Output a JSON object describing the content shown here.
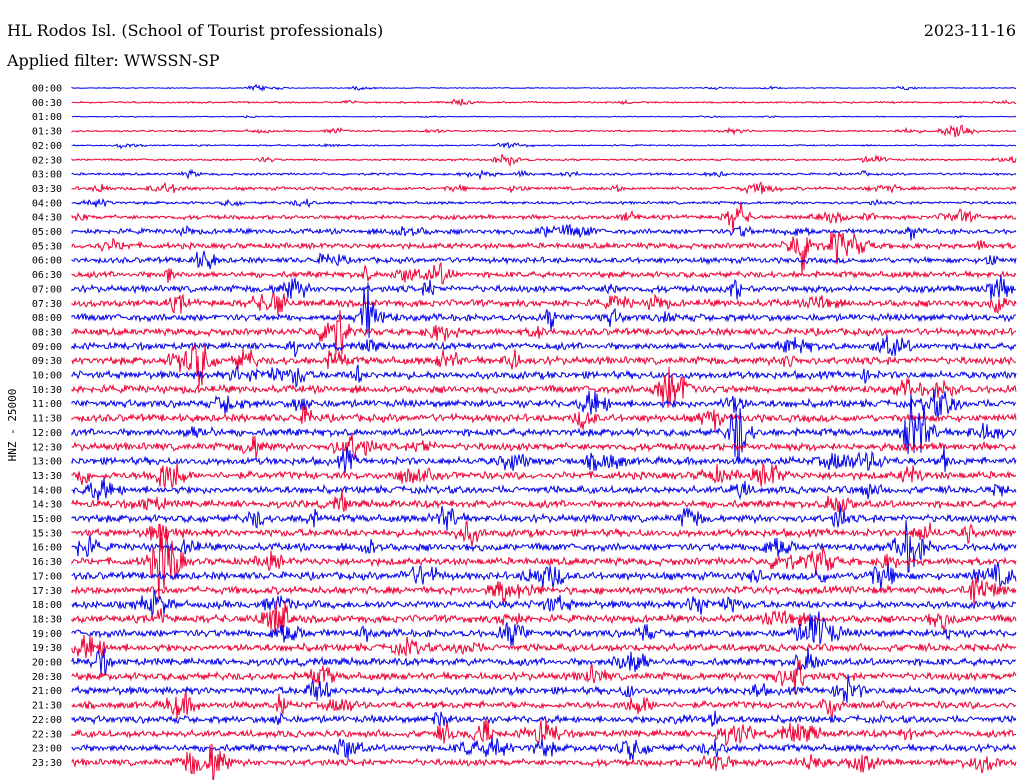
{
  "header": {
    "station": "HL Rodos Isl. (School of Tourist professionals)",
    "date": "2023-11-16",
    "filter": "Applied filter: WWSSN-SP"
  },
  "chart_data": {
    "type": "line",
    "title": "HL Rodos Isl. (School of Tourist professionals)",
    "subtitle": "Applied filter: WWSSN-SP",
    "ylabel": "HNZ - 25000",
    "xlabel": "",
    "grid": false,
    "row_labels": [
      "00:00",
      "00:30",
      "01:00",
      "01:30",
      "02:00",
      "02:30",
      "03:00",
      "03:30",
      "04:00",
      "04:30",
      "05:00",
      "05:30",
      "06:00",
      "06:30",
      "07:00",
      "07:30",
      "08:00",
      "08:30",
      "09:00",
      "09:30",
      "10:00",
      "10:30",
      "11:00",
      "11:30",
      "12:00",
      "12:30",
      "13:00",
      "13:30",
      "14:00",
      "14:30",
      "15:00",
      "15:30",
      "16:00",
      "16:30",
      "17:00",
      "17:30",
      "18:00",
      "18:30",
      "19:00",
      "19:30",
      "20:00",
      "20:30",
      "21:00",
      "21:30",
      "22:00",
      "22:30",
      "23:00",
      "23:30"
    ],
    "colors": [
      "#0000ee",
      "#ee0033"
    ],
    "relative_noise_amplitude": [
      0.1,
      0.18,
      0.1,
      0.18,
      0.15,
      0.22,
      0.25,
      0.35,
      0.3,
      0.45,
      0.55,
      0.6,
      0.6,
      0.65,
      0.7,
      0.75,
      0.75,
      0.75,
      0.75,
      0.8,
      0.8,
      0.8,
      0.8,
      0.8,
      0.8,
      0.8,
      0.8,
      0.8,
      0.8,
      0.8,
      0.8,
      0.8,
      0.8,
      0.8,
      0.8,
      0.8,
      0.8,
      0.8,
      0.8,
      0.8,
      0.8,
      0.8,
      0.8,
      0.75,
      0.75,
      0.75,
      0.75,
      0.7
    ]
  }
}
